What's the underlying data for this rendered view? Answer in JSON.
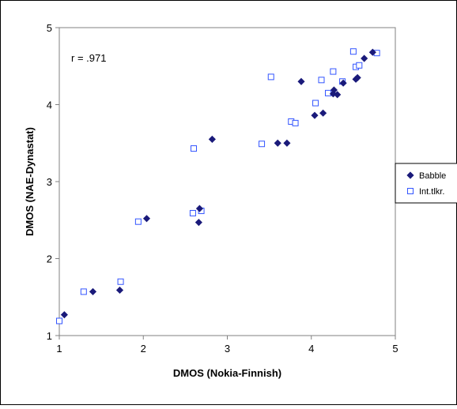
{
  "chart_data": {
    "type": "scatter",
    "xlabel": "DMOS (Nokia-Finnish)",
    "ylabel": "DMOS (NAE-Dynastat)",
    "xlim": [
      1,
      5
    ],
    "ylim": [
      1,
      5
    ],
    "x_ticks": [
      "1",
      "2",
      "3",
      "4",
      "5"
    ],
    "y_ticks": [
      "1",
      "2",
      "3",
      "4",
      "5"
    ],
    "grid": false,
    "annotation": "r = .971",
    "legend_position": "right",
    "series": [
      {
        "name": "Babble",
        "marker": "filled-diamond",
        "color": "#1a1a7a",
        "points": [
          [
            1.06,
            1.27
          ],
          [
            1.4,
            1.57
          ],
          [
            1.72,
            1.59
          ],
          [
            2.04,
            2.52
          ],
          [
            2.66,
            2.47
          ],
          [
            2.67,
            2.65
          ],
          [
            2.82,
            3.55
          ],
          [
            3.6,
            3.5
          ],
          [
            3.71,
            3.5
          ],
          [
            3.88,
            4.3
          ],
          [
            4.04,
            3.86
          ],
          [
            4.14,
            3.89
          ],
          [
            4.26,
            4.14
          ],
          [
            4.27,
            4.19
          ],
          [
            4.31,
            4.13
          ],
          [
            4.38,
            4.28
          ],
          [
            4.53,
            4.33
          ],
          [
            4.55,
            4.35
          ],
          [
            4.63,
            4.6
          ],
          [
            4.73,
            4.68
          ]
        ]
      },
      {
        "name": "Int.tlkr.",
        "marker": "hollow-square",
        "color": "#3355ff",
        "points": [
          [
            1.0,
            1.19
          ],
          [
            1.29,
            1.57
          ],
          [
            1.73,
            1.7
          ],
          [
            1.94,
            2.48
          ],
          [
            2.59,
            2.59
          ],
          [
            2.6,
            3.43
          ],
          [
            2.69,
            2.62
          ],
          [
            3.41,
            3.49
          ],
          [
            3.52,
            4.36
          ],
          [
            3.76,
            3.78
          ],
          [
            3.81,
            3.76
          ],
          [
            4.05,
            4.02
          ],
          [
            4.12,
            4.32
          ],
          [
            4.2,
            4.15
          ],
          [
            4.26,
            4.43
          ],
          [
            4.37,
            4.3
          ],
          [
            4.5,
            4.69
          ],
          [
            4.53,
            4.49
          ],
          [
            4.57,
            4.51
          ],
          [
            4.78,
            4.67
          ]
        ]
      }
    ]
  }
}
